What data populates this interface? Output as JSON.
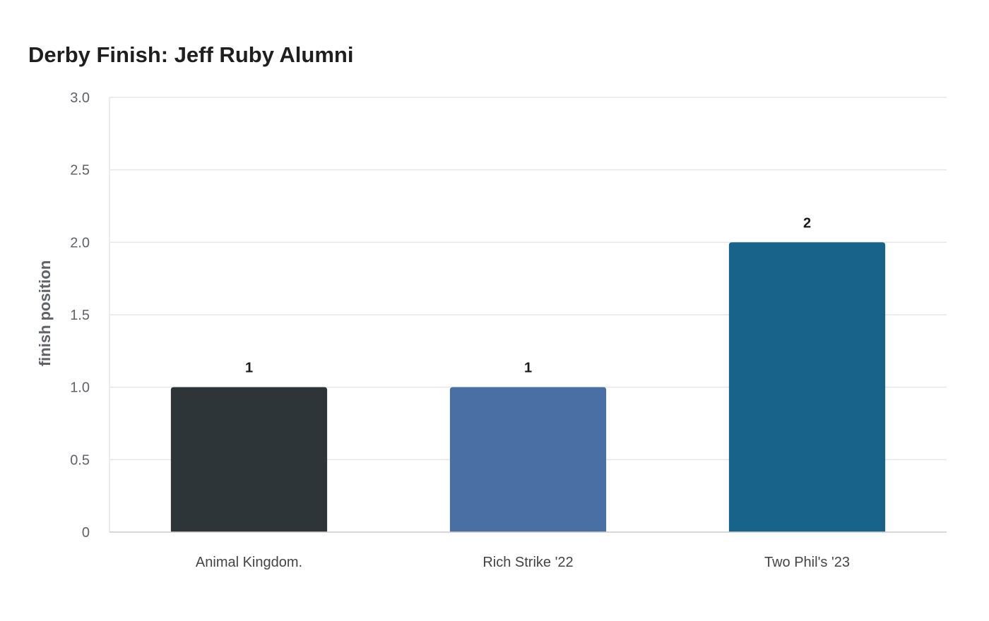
{
  "chart_data": {
    "type": "bar",
    "title": "Derby Finish: Jeff Ruby Alumni",
    "xlabel": "",
    "ylabel": "finish position",
    "categories": [
      "Animal Kingdom.",
      "Rich Strike '22",
      "Two Phil's '23"
    ],
    "values": [
      1,
      1,
      2
    ],
    "data_labels": [
      "1",
      "1",
      "2"
    ],
    "bar_colors": [
      "#2e3538",
      "#4a6fa5",
      "#186389"
    ],
    "ylim": [
      0,
      3.0
    ],
    "yticks": [
      0,
      0.5,
      1.0,
      1.5,
      2.0,
      2.5,
      3.0
    ],
    "ytick_labels": [
      "0",
      "0.5",
      "1.0",
      "1.5",
      "2.0",
      "2.5",
      "3.0"
    ],
    "grid": true,
    "legend": "none"
  }
}
